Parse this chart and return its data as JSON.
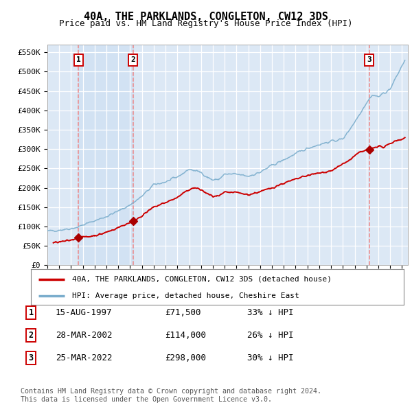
{
  "title": "40A, THE PARKLANDS, CONGLETON, CW12 3DS",
  "subtitle": "Price paid vs. HM Land Registry's House Price Index (HPI)",
  "plot_bg_color": "#dce8f5",
  "grid_color": "#ffffff",
  "sale_prices": [
    71500,
    114000,
    298000
  ],
  "sale_labels": [
    "1",
    "2",
    "3"
  ],
  "sale_hpi_pct": [
    "33% ↓ HPI",
    "26% ↓ HPI",
    "30% ↓ HPI"
  ],
  "sale_date_labels": [
    "15-AUG-1997",
    "28-MAR-2002",
    "25-MAR-2022"
  ],
  "sale_year_decimals": [
    1997.625,
    2002.24,
    2022.24
  ],
  "legend_red": "40A, THE PARKLANDS, CONGLETON, CW12 3DS (detached house)",
  "legend_blue": "HPI: Average price, detached house, Cheshire East",
  "footnote": "Contains HM Land Registry data © Crown copyright and database right 2024.\nThis data is licensed under the Open Government Licence v3.0.",
  "ylim": [
    0,
    570000
  ],
  "yticks": [
    0,
    50000,
    100000,
    150000,
    200000,
    250000,
    300000,
    350000,
    400000,
    450000,
    500000,
    550000
  ],
  "ytick_labels": [
    "£0",
    "£50K",
    "£100K",
    "£150K",
    "£200K",
    "£250K",
    "£300K",
    "£350K",
    "£400K",
    "£450K",
    "£500K",
    "£550K"
  ],
  "xmin_year": 1995.0,
  "xmax_year": 2025.5,
  "xtick_years": [
    1995,
    1996,
    1997,
    1998,
    1999,
    2000,
    2001,
    2002,
    2003,
    2004,
    2005,
    2006,
    2007,
    2008,
    2009,
    2010,
    2011,
    2012,
    2013,
    2014,
    2015,
    2016,
    2017,
    2018,
    2019,
    2020,
    2021,
    2022,
    2023,
    2024,
    2025
  ],
  "red_color": "#cc0000",
  "blue_color": "#7aadcc",
  "dashed_color": "#ee8888",
  "marker_color": "#aa0000",
  "hpi_anchors_x": [
    1995.0,
    1996.0,
    1997.0,
    1997.5,
    1998.0,
    1999.0,
    2000.0,
    2001.0,
    2002.0,
    2003.0,
    2004.0,
    2005.0,
    2006.0,
    2007.0,
    2008.0,
    2008.5,
    2009.0,
    2009.5,
    2010.0,
    2011.0,
    2012.0,
    2013.0,
    2014.0,
    2015.0,
    2016.0,
    2017.0,
    2018.0,
    2019.0,
    2020.0,
    2021.0,
    2022.0,
    2022.5,
    2023.0,
    2024.0,
    2025.25
  ],
  "hpi_anchors_y": [
    88000,
    91000,
    95000,
    98000,
    104000,
    115000,
    126000,
    140000,
    156000,
    178000,
    208000,
    215000,
    228000,
    248000,
    240000,
    228000,
    220000,
    222000,
    235000,
    235000,
    230000,
    240000,
    258000,
    272000,
    288000,
    302000,
    312000,
    320000,
    326000,
    370000,
    420000,
    440000,
    435000,
    455000,
    530000
  ],
  "red_anchors_x": [
    1995.5,
    1996.5,
    1997.0,
    1997.625,
    1998.5,
    1999.5,
    2000.5,
    2001.5,
    2002.24,
    2003.0,
    2004.0,
    2005.0,
    2006.0,
    2007.0,
    2007.5,
    2008.0,
    2008.5,
    2009.0,
    2009.5,
    2010.0,
    2011.0,
    2012.0,
    2013.0,
    2014.0,
    2015.0,
    2016.0,
    2017.0,
    2018.0,
    2019.0,
    2019.5,
    2020.0,
    2020.5,
    2021.0,
    2021.5,
    2022.24,
    2022.5,
    2023.0,
    2023.5,
    2024.0,
    2024.5,
    2025.25
  ],
  "red_anchors_y": [
    58000,
    62000,
    65000,
    71500,
    74000,
    80000,
    91000,
    104000,
    114000,
    128000,
    150000,
    162000,
    175000,
    196000,
    200000,
    195000,
    185000,
    178000,
    178000,
    188000,
    188000,
    182000,
    190000,
    200000,
    212000,
    222000,
    232000,
    238000,
    244000,
    252000,
    262000,
    270000,
    282000,
    293000,
    298000,
    303000,
    308000,
    304000,
    315000,
    322000,
    328000
  ]
}
